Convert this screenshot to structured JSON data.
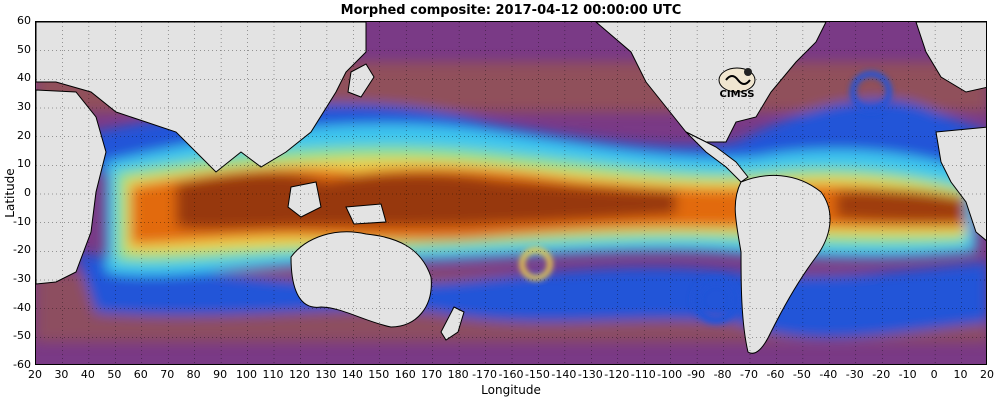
{
  "title": "Morphed composite: 2017-04-12 00:00:00 UTC",
  "xlabel": "Longitude",
  "ylabel": "Latitude",
  "logo_text": "CIMSS",
  "x_ticks": [
    "20",
    "30",
    "40",
    "50",
    "60",
    "70",
    "80",
    "90",
    "100",
    "110",
    "120",
    "130",
    "140",
    "150",
    "160",
    "170",
    "180",
    "-170",
    "-160",
    "-150",
    "-140",
    "-130",
    "-120",
    "-110",
    "-100",
    "-90",
    "-80",
    "-70",
    "-60",
    "-50",
    "-40",
    "-30",
    "-20",
    "-10",
    "0",
    "10",
    "20"
  ],
  "y_ticks": [
    "60",
    "50",
    "40",
    "30",
    "20",
    "10",
    "0",
    "-10",
    "-20",
    "-30",
    "-40",
    "-50",
    "-60"
  ],
  "colors": {
    "land": "#e3e3e3",
    "dry": "#7a3a86",
    "dry_dark": "#5b1f73",
    "brownish": "#9a5a4a",
    "blue": "#2255d8",
    "cyan": "#3ec6ee",
    "green": "#8ee08a",
    "yellow": "#f0d24a",
    "orange": "#e26a10",
    "deep": "#8f3208"
  }
}
